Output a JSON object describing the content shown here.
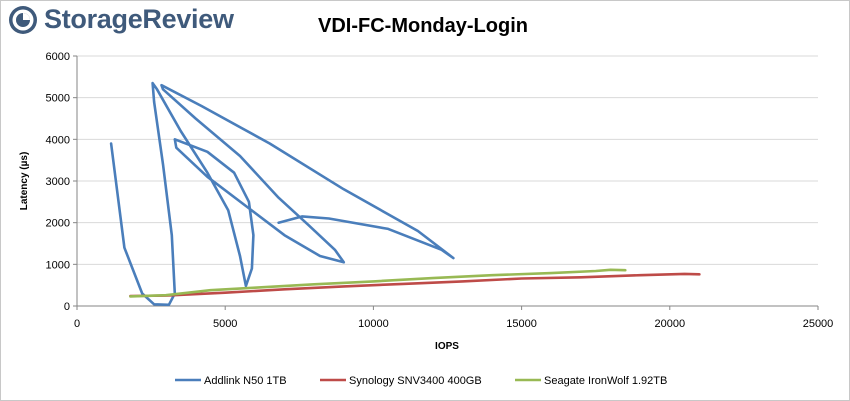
{
  "brand": {
    "name": "StorageReview"
  },
  "chart_data": {
    "type": "line",
    "title": "VDI-FC-Monday-Login",
    "xlabel": "IOPS",
    "ylabel": "Latency (µs)",
    "xlim": [
      0,
      25000
    ],
    "ylim": [
      0,
      6000
    ],
    "xticks": [
      0,
      5000,
      10000,
      15000,
      20000,
      25000
    ],
    "yticks": [
      0,
      1000,
      2000,
      3000,
      4000,
      5000,
      6000
    ],
    "grid": "horizontal",
    "legend_position": "bottom",
    "series": [
      {
        "name": "Addlink N50 1TB",
        "color": "#4a7ebb",
        "points": [
          [
            1150,
            3900
          ],
          [
            1600,
            1400
          ],
          [
            2200,
            300
          ],
          [
            2600,
            40
          ],
          [
            3100,
            30
          ],
          [
            3300,
            300
          ],
          [
            3200,
            1700
          ],
          [
            2900,
            3400
          ],
          [
            2600,
            4900
          ],
          [
            2550,
            5350
          ],
          [
            2700,
            5200
          ],
          [
            3500,
            4200
          ],
          [
            4400,
            3200
          ],
          [
            5100,
            2300
          ],
          [
            5500,
            1200
          ],
          [
            5700,
            480
          ],
          [
            5900,
            900
          ],
          [
            5950,
            1700
          ],
          [
            5800,
            2500
          ],
          [
            5300,
            3200
          ],
          [
            4400,
            3700
          ],
          [
            3300,
            4000
          ],
          [
            3350,
            3800
          ],
          [
            4400,
            3100
          ],
          [
            5700,
            2400
          ],
          [
            7000,
            1700
          ],
          [
            8200,
            1200
          ],
          [
            9000,
            1050
          ],
          [
            8700,
            1350
          ],
          [
            7800,
            1950
          ],
          [
            6800,
            2600
          ],
          [
            5500,
            3600
          ],
          [
            4000,
            4500
          ],
          [
            2900,
            5200
          ],
          [
            2850,
            5300
          ],
          [
            4200,
            4800
          ],
          [
            6500,
            3900
          ],
          [
            9000,
            2800
          ],
          [
            11500,
            1800
          ],
          [
            12700,
            1150
          ],
          [
            12300,
            1350
          ],
          [
            10500,
            1850
          ],
          [
            8500,
            2100
          ],
          [
            7600,
            2150
          ],
          [
            6800,
            2000
          ]
        ]
      },
      {
        "name": "Synology SNV3400 400GB",
        "color": "#be4b48",
        "points": [
          [
            1800,
            240
          ],
          [
            3000,
            250
          ],
          [
            5000,
            320
          ],
          [
            7000,
            400
          ],
          [
            9000,
            470
          ],
          [
            11000,
            530
          ],
          [
            13000,
            590
          ],
          [
            15000,
            660
          ],
          [
            17000,
            690
          ],
          [
            19000,
            740
          ],
          [
            20500,
            770
          ],
          [
            21000,
            760
          ]
        ]
      },
      {
        "name": "Seagate IronWolf 1.92TB",
        "color": "#98b954",
        "points": [
          [
            1800,
            230
          ],
          [
            3000,
            260
          ],
          [
            4500,
            380
          ],
          [
            6000,
            440
          ],
          [
            8000,
            520
          ],
          [
            10000,
            590
          ],
          [
            12000,
            670
          ],
          [
            14000,
            740
          ],
          [
            16000,
            790
          ],
          [
            17500,
            840
          ],
          [
            18000,
            870
          ],
          [
            18500,
            860
          ]
        ]
      }
    ]
  }
}
